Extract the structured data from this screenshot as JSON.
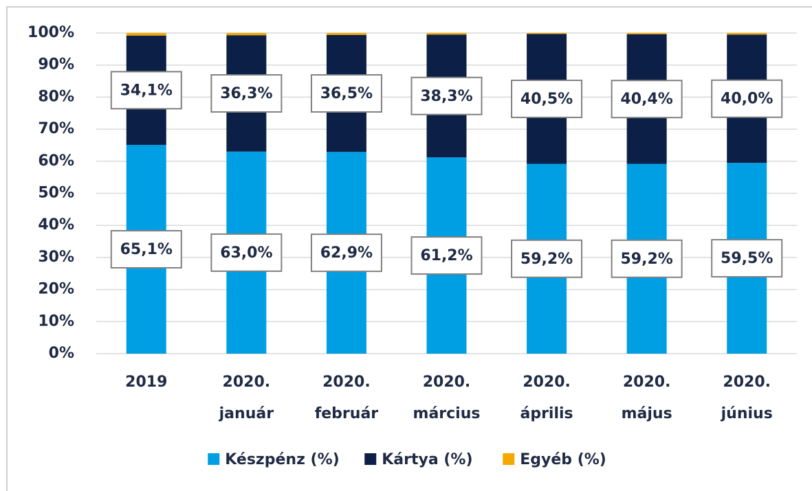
{
  "chart_data": {
    "type": "stacked_bar",
    "categories": [
      [
        "2019"
      ],
      [
        "2020.",
        "január"
      ],
      [
        "2020.",
        "február"
      ],
      [
        "2020.",
        "március"
      ],
      [
        "2020.",
        "április"
      ],
      [
        "2020.",
        "május"
      ],
      [
        "2020.",
        "június"
      ]
    ],
    "series": [
      {
        "name": "Készpénz (%)",
        "color": "#009fe3",
        "values": [
          65.1,
          63.0,
          62.9,
          61.2,
          59.2,
          59.2,
          59.5
        ],
        "value_labels": [
          "65,1%",
          "63,0%",
          "62,9%",
          "61,2%",
          "59,2%",
          "59,2%",
          "59,5%"
        ]
      },
      {
        "name": "Kártya (%)",
        "color": "#0c1f47",
        "values": [
          34.1,
          36.3,
          36.5,
          38.3,
          40.5,
          40.4,
          40.0
        ],
        "value_labels": [
          "34,1%",
          "36,3%",
          "36,5%",
          "38,3%",
          "40,5%",
          "40,4%",
          "40,0%"
        ]
      },
      {
        "name": "Egyéb (%)",
        "color": "#f5a800",
        "values": [
          0.8,
          0.7,
          0.6,
          0.5,
          0.3,
          0.4,
          0.5
        ]
      }
    ],
    "ylim": [
      0,
      100
    ],
    "yticks": [
      {
        "value": 0,
        "label": "0%"
      },
      {
        "value": 10,
        "label": "10%"
      },
      {
        "value": 20,
        "label": "20%"
      },
      {
        "value": 30,
        "label": "30%"
      },
      {
        "value": 40,
        "label": "40%"
      },
      {
        "value": 50,
        "label": "50%"
      },
      {
        "value": 60,
        "label": "60%"
      },
      {
        "value": 70,
        "label": "70%"
      },
      {
        "value": 80,
        "label": "80%"
      },
      {
        "value": 90,
        "label": "90%"
      },
      {
        "value": 100,
        "label": "100%"
      }
    ],
    "grid": true,
    "legend": "bottom"
  }
}
